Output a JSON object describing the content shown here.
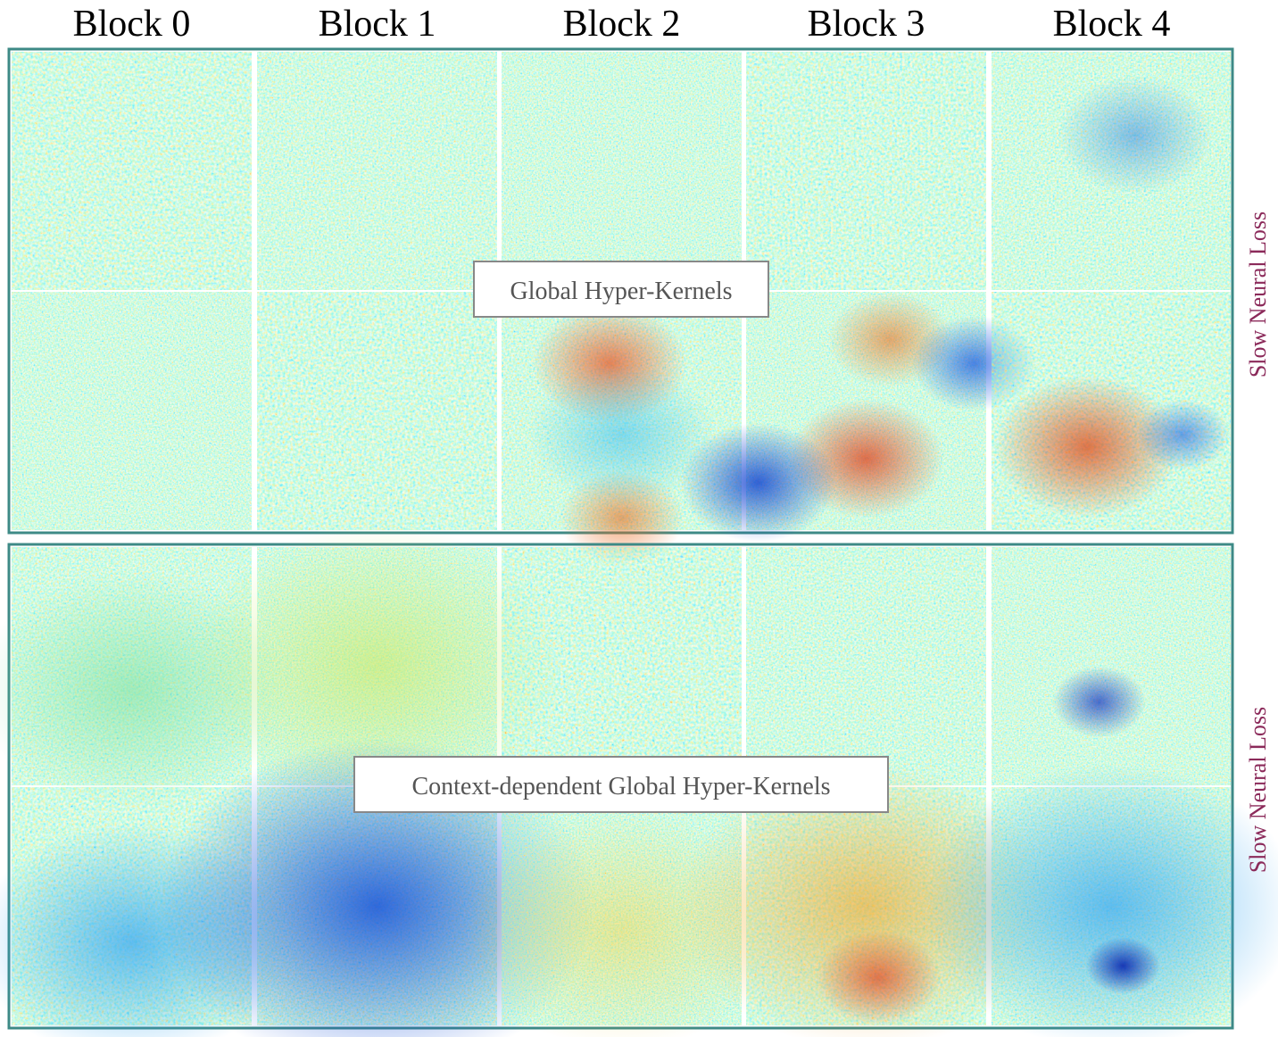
{
  "columns": [
    "Block 0",
    "Block 1",
    "Block 2",
    "Block 3",
    "Block 4"
  ],
  "panels": [
    {
      "label": "Global Hyper-Kernels",
      "side_label": "Slow Neural Loss"
    },
    {
      "label": "Context-dependent Global Hyper-Kernels",
      "side_label": "Slow Neural Loss"
    }
  ]
}
